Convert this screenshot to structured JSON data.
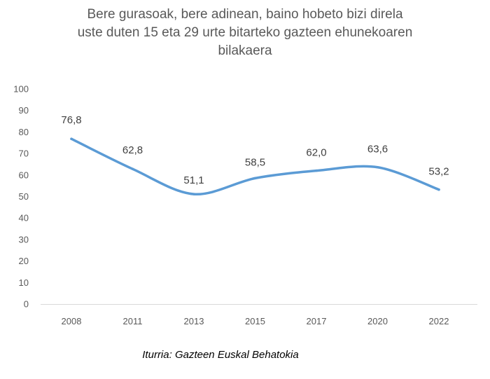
{
  "chart_data": {
    "type": "line",
    "title_lines": [
      "Bere gurasoak, bere adinean, baino hobeto bizi direla",
      "uste duten 15 eta 29 urte bitarteko gazteen ehunekoaren",
      "bilakaera"
    ],
    "categories": [
      "2008",
      "2011",
      "2013",
      "2015",
      "2017",
      "2020",
      "2022"
    ],
    "series": [
      {
        "values": [
          76.8,
          62.8,
          51.1,
          58.5,
          62.0,
          63.6,
          53.2
        ],
        "labels": [
          "76,8",
          "62,8",
          "51,1",
          "58,5",
          "62,0",
          "63,6",
          "53,2"
        ],
        "color": "#5B9BD5"
      }
    ],
    "yticks": [
      "0",
      "10",
      "20",
      "30",
      "40",
      "50",
      "60",
      "70",
      "80",
      "90",
      "100"
    ],
    "ylim": [
      0,
      100
    ],
    "grid": false,
    "legend": "none",
    "smooth": true
  },
  "source": "Iturria: Gazteen Euskal Behatokia"
}
